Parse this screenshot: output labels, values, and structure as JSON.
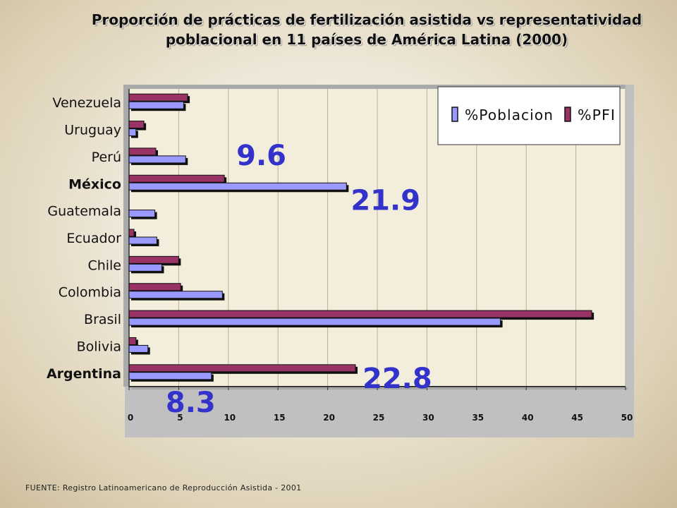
{
  "chart_data": {
    "type": "bar",
    "orientation": "horizontal",
    "title": "Proporción de prácticas de fertilización asistida vs representatividad poblacional en 11 países de América Latina (2000)",
    "title_lines": [
      "Proporción de prácticas de fertilización asistida vs representatividad",
      "poblacional en 11 países de América Latina (2000)"
    ],
    "categories": [
      "Argentina",
      "Bolivia",
      "Brasil",
      "Colombia",
      "Chile",
      "Ecuador",
      "Guatemala",
      "México",
      "Perú",
      "Uruguay",
      "Venezuela"
    ],
    "bold_categories": [
      "Argentina",
      "México"
    ],
    "series": [
      {
        "name": "%Poblacion",
        "color": "#9999ff",
        "values": [
          8.3,
          1.9,
          37.4,
          9.4,
          3.3,
          2.8,
          2.6,
          21.9,
          5.7,
          0.7,
          5.5
        ]
      },
      {
        "name": "%PFI",
        "color": "#993366",
        "values": [
          22.8,
          0.7,
          46.6,
          5.2,
          5.0,
          0.5,
          0.0,
          9.6,
          2.7,
          1.5,
          5.9
        ]
      }
    ],
    "xlim": [
      0,
      50
    ],
    "xticks": [
      "0",
      "5",
      "10",
      "15",
      "20",
      "25",
      "30",
      "35",
      "40",
      "45",
      "50"
    ],
    "grid": true,
    "legend_position": "top-right",
    "annotations": [
      {
        "text": "9.6",
        "category": "México",
        "series": "%PFI"
      },
      {
        "text": "21.9",
        "category": "México",
        "series": "%Poblacion"
      },
      {
        "text": "22.8",
        "category": "Argentina",
        "series": "%PFI"
      },
      {
        "text": "8.3",
        "category": "Argentina",
        "series": "%Poblacion"
      }
    ],
    "annotation_color": "#3333cc"
  },
  "footer": "FUENTE: Registro Latinoamericano de Reproducción Asistida - 2001"
}
